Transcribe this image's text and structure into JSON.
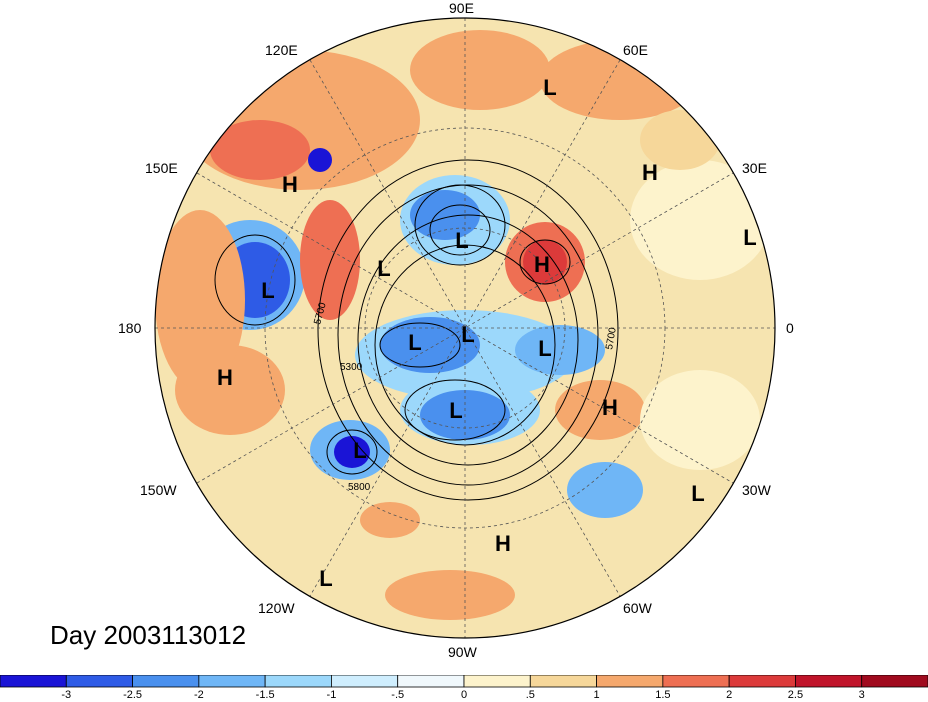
{
  "day_label": "Day 2003113012",
  "longitude_labels": [
    "90E",
    "60E",
    "30E",
    "0",
    "30W",
    "60W",
    "90W",
    "120W",
    "150W",
    "180",
    "150E",
    "120E"
  ],
  "contour_labels": [
    "5700",
    "5300",
    "5800",
    "5700"
  ],
  "pressure_centers": [
    {
      "text": "H",
      "kind": "high"
    },
    {
      "text": "L",
      "kind": "low"
    },
    {
      "text": "H",
      "kind": "high"
    },
    {
      "text": "L",
      "kind": "low"
    },
    {
      "text": "L",
      "kind": "low"
    },
    {
      "text": "H",
      "kind": "high"
    },
    {
      "text": "L",
      "kind": "low"
    },
    {
      "text": "L",
      "kind": "low"
    },
    {
      "text": "L",
      "kind": "low"
    },
    {
      "text": "L",
      "kind": "low"
    },
    {
      "text": "L",
      "kind": "low"
    },
    {
      "text": "H",
      "kind": "high"
    },
    {
      "text": "H",
      "kind": "high"
    },
    {
      "text": "L",
      "kind": "low"
    },
    {
      "text": "L",
      "kind": "low"
    },
    {
      "text": "L",
      "kind": "low"
    },
    {
      "text": "H",
      "kind": "high"
    },
    {
      "text": "L",
      "kind": "low"
    }
  ],
  "colorbar": {
    "ticks": [
      "-3",
      "-2.5",
      "-2",
      "-1.5",
      "-1",
      "-.5",
      "0",
      ".5",
      "1",
      "1.5",
      "2",
      "2.5",
      "3"
    ],
    "colors": [
      "#1a14d6",
      "#2e5be6",
      "#4a90ee",
      "#6fb6f6",
      "#9cd8fb",
      "#cfeefe",
      "#f0f8fc",
      "#fdf3cc",
      "#f6d79a",
      "#f5a86d",
      "#ee6f53",
      "#dc3a3a",
      "#c0142a",
      "#a00a1e"
    ]
  }
}
